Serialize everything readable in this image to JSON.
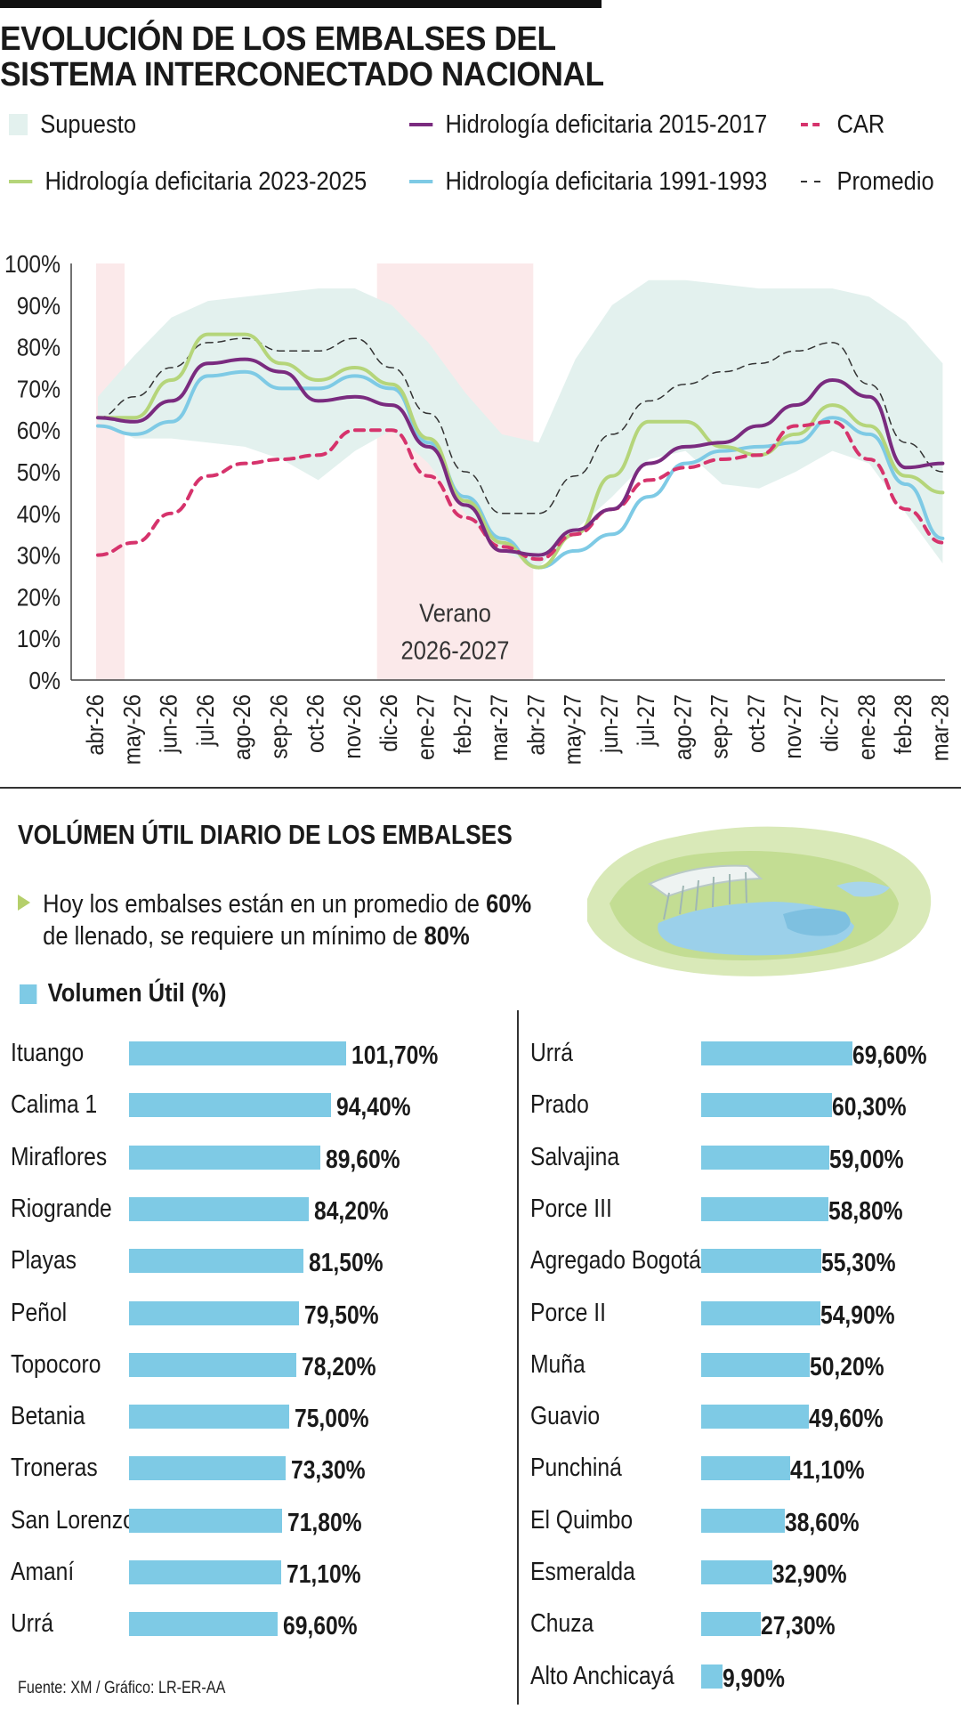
{
  "title_line1": "EVOLUCIÓN DE LOS EMBALSES DEL",
  "title_line2": "SISTEMA INTERCONECTADO NACIONAL",
  "legend": [
    {
      "label": "Supuesto",
      "color": "#e3f1ee",
      "style": "area"
    },
    {
      "label": "Hidrología deficitaria 2015-2017",
      "color": "#7a2b7f",
      "style": "solid"
    },
    {
      "label": "CAR",
      "color": "#d6336c",
      "style": "dashed"
    },
    {
      "label": "Hidrología deficitaria 2023-2025",
      "color": "#b5d57a",
      "style": "solid"
    },
    {
      "label": "Hidrología deficitaria 1991-1993",
      "color": "#7ecae5",
      "style": "solid"
    },
    {
      "label": "Promedio",
      "color": "#333333",
      "style": "dashed"
    }
  ],
  "chart_data": [
    {
      "type": "line",
      "x": [
        "abr-26",
        "may-26",
        "jun-26",
        "jul-26",
        "ago-26",
        "sep-26",
        "oct-26",
        "nov-26",
        "dic-26",
        "ene-27",
        "feb-27",
        "mar-27",
        "abr-27",
        "may-27",
        "jun-27",
        "jul-27",
        "ago-27",
        "sep-27",
        "oct-27",
        "nov-27",
        "dic-27",
        "ene-28",
        "feb-28",
        "mar-28"
      ],
      "ylim": [
        0,
        100
      ],
      "yticks": [
        "0%",
        "10%",
        "20%",
        "30%",
        "40%",
        "50%",
        "60%",
        "70%",
        "80%",
        "90%",
        "100%"
      ],
      "band": {
        "name": "Supuesto",
        "upper": [
          68,
          78,
          87,
          91,
          92,
          93,
          94,
          94,
          90,
          81,
          69,
          59,
          57,
          77,
          90,
          96,
          96,
          95,
          94,
          94,
          94,
          92,
          86,
          76
        ],
        "lower": [
          62,
          58,
          58,
          57,
          56,
          53,
          48,
          55,
          60,
          52,
          40,
          31,
          27,
          36,
          44,
          53,
          55,
          47,
          46,
          50,
          55,
          52,
          40,
          28
        ]
      },
      "series": [
        {
          "name": "Hidrología deficitaria 2015-2017",
          "values": [
            63,
            62,
            67,
            76,
            77,
            74,
            67,
            68,
            66,
            56,
            42,
            31,
            30,
            36,
            41,
            52,
            56,
            57,
            61,
            66,
            72,
            68,
            51,
            52
          ]
        },
        {
          "name": "CAR",
          "values": [
            30,
            33,
            40,
            49,
            52,
            53,
            54,
            60,
            60,
            49,
            39,
            32,
            29,
            35,
            41,
            48,
            51,
            53,
            54,
            61,
            62,
            53,
            41,
            33
          ]
        },
        {
          "name": "Hidrología deficitaria 2023-2025",
          "values": [
            63,
            63,
            72,
            83,
            83,
            76,
            72,
            75,
            71,
            58,
            43,
            33,
            27,
            35,
            49,
            62,
            62,
            56,
            54,
            59,
            66,
            61,
            49,
            45
          ]
        },
        {
          "name": "Hidrología deficitaria 1991-1993",
          "values": [
            61,
            59,
            62,
            73,
            74,
            70,
            70,
            73,
            70,
            57,
            44,
            34,
            27,
            31,
            35,
            44,
            52,
            55,
            56,
            57,
            63,
            59,
            47,
            34
          ]
        },
        {
          "name": "Promedio",
          "values": [
            63,
            68,
            75,
            81,
            82,
            79,
            79,
            82,
            75,
            64,
            50,
            40,
            40,
            49,
            59,
            67,
            71,
            74,
            76,
            79,
            81,
            71,
            57,
            50
          ]
        }
      ],
      "shaded_periods": [
        {
          "from": "abr-26",
          "to": "abr-26",
          "label": ""
        },
        {
          "from": "dic-26",
          "to": "abr-27",
          "label_line1": "Verano",
          "label_line2": "2026-2027"
        }
      ]
    },
    {
      "type": "bar",
      "title": "VOLÚMEN ÚTIL DIARIO DE LOS EMBALSES",
      "legend": "Volumen Útil (%)",
      "left": [
        {
          "name": "Ituango",
          "value": 101.7,
          "label": "101,70%"
        },
        {
          "name": "Calima 1",
          "value": 94.4,
          "label": "94,40%"
        },
        {
          "name": "Miraflores",
          "value": 89.6,
          "label": "89,60%"
        },
        {
          "name": "Riogrande",
          "value": 84.2,
          "label": "84,20%"
        },
        {
          "name": "Playas",
          "value": 81.5,
          "label": "81,50%"
        },
        {
          "name": "Peñol",
          "value": 79.5,
          "label": "79,50%"
        },
        {
          "name": "Topocoro",
          "value": 78.2,
          "label": "78,20%"
        },
        {
          "name": "Betania",
          "value": 75.0,
          "label": "75,00%"
        },
        {
          "name": "Troneras",
          "value": 73.3,
          "label": "73,30%"
        },
        {
          "name": "San Lorenzo",
          "value": 71.8,
          "label": "71,80%"
        },
        {
          "name": "Amaní",
          "value": 71.1,
          "label": "71,10%"
        },
        {
          "name": "Urrá",
          "value": 69.6,
          "label": "69,60%"
        }
      ],
      "right": [
        {
          "name": "Urrá",
          "value": 69.6,
          "label": "69,60%"
        },
        {
          "name": "Prado",
          "value": 60.3,
          "label": "60,30%"
        },
        {
          "name": "Salvajina",
          "value": 59.0,
          "label": "59,00%"
        },
        {
          "name": "Porce III",
          "value": 58.8,
          "label": "58,80%"
        },
        {
          "name": "Agregado Bogotá",
          "value": 55.3,
          "label": "55,30%"
        },
        {
          "name": "Porce II",
          "value": 54.9,
          "label": "54,90%"
        },
        {
          "name": "Muña",
          "value": 50.2,
          "label": "50,20%"
        },
        {
          "name": "Guavio",
          "value": 49.6,
          "label": "49,60%"
        },
        {
          "name": "Punchiná",
          "value": 41.1,
          "label": "41,10%"
        },
        {
          "name": "El Quimbo",
          "value": 38.6,
          "label": "38,60%"
        },
        {
          "name": "Esmeralda",
          "value": 32.9,
          "label": "32,90%"
        },
        {
          "name": "Chuza",
          "value": 27.3,
          "label": "27,30%"
        },
        {
          "name": "Alto Anchicayá",
          "value": 9.9,
          "label": "9,90%"
        }
      ]
    }
  ],
  "bullet": {
    "part1": "Hoy los embalses están en un promedio de ",
    "bold1": "60%",
    "part2": "de llenado, se requiere un mínimo de ",
    "bold2": "80%"
  },
  "source": "Fuente: XM / Gráfico: LR-ER-AA",
  "illustration_icon": "dam-reservoir-icon"
}
